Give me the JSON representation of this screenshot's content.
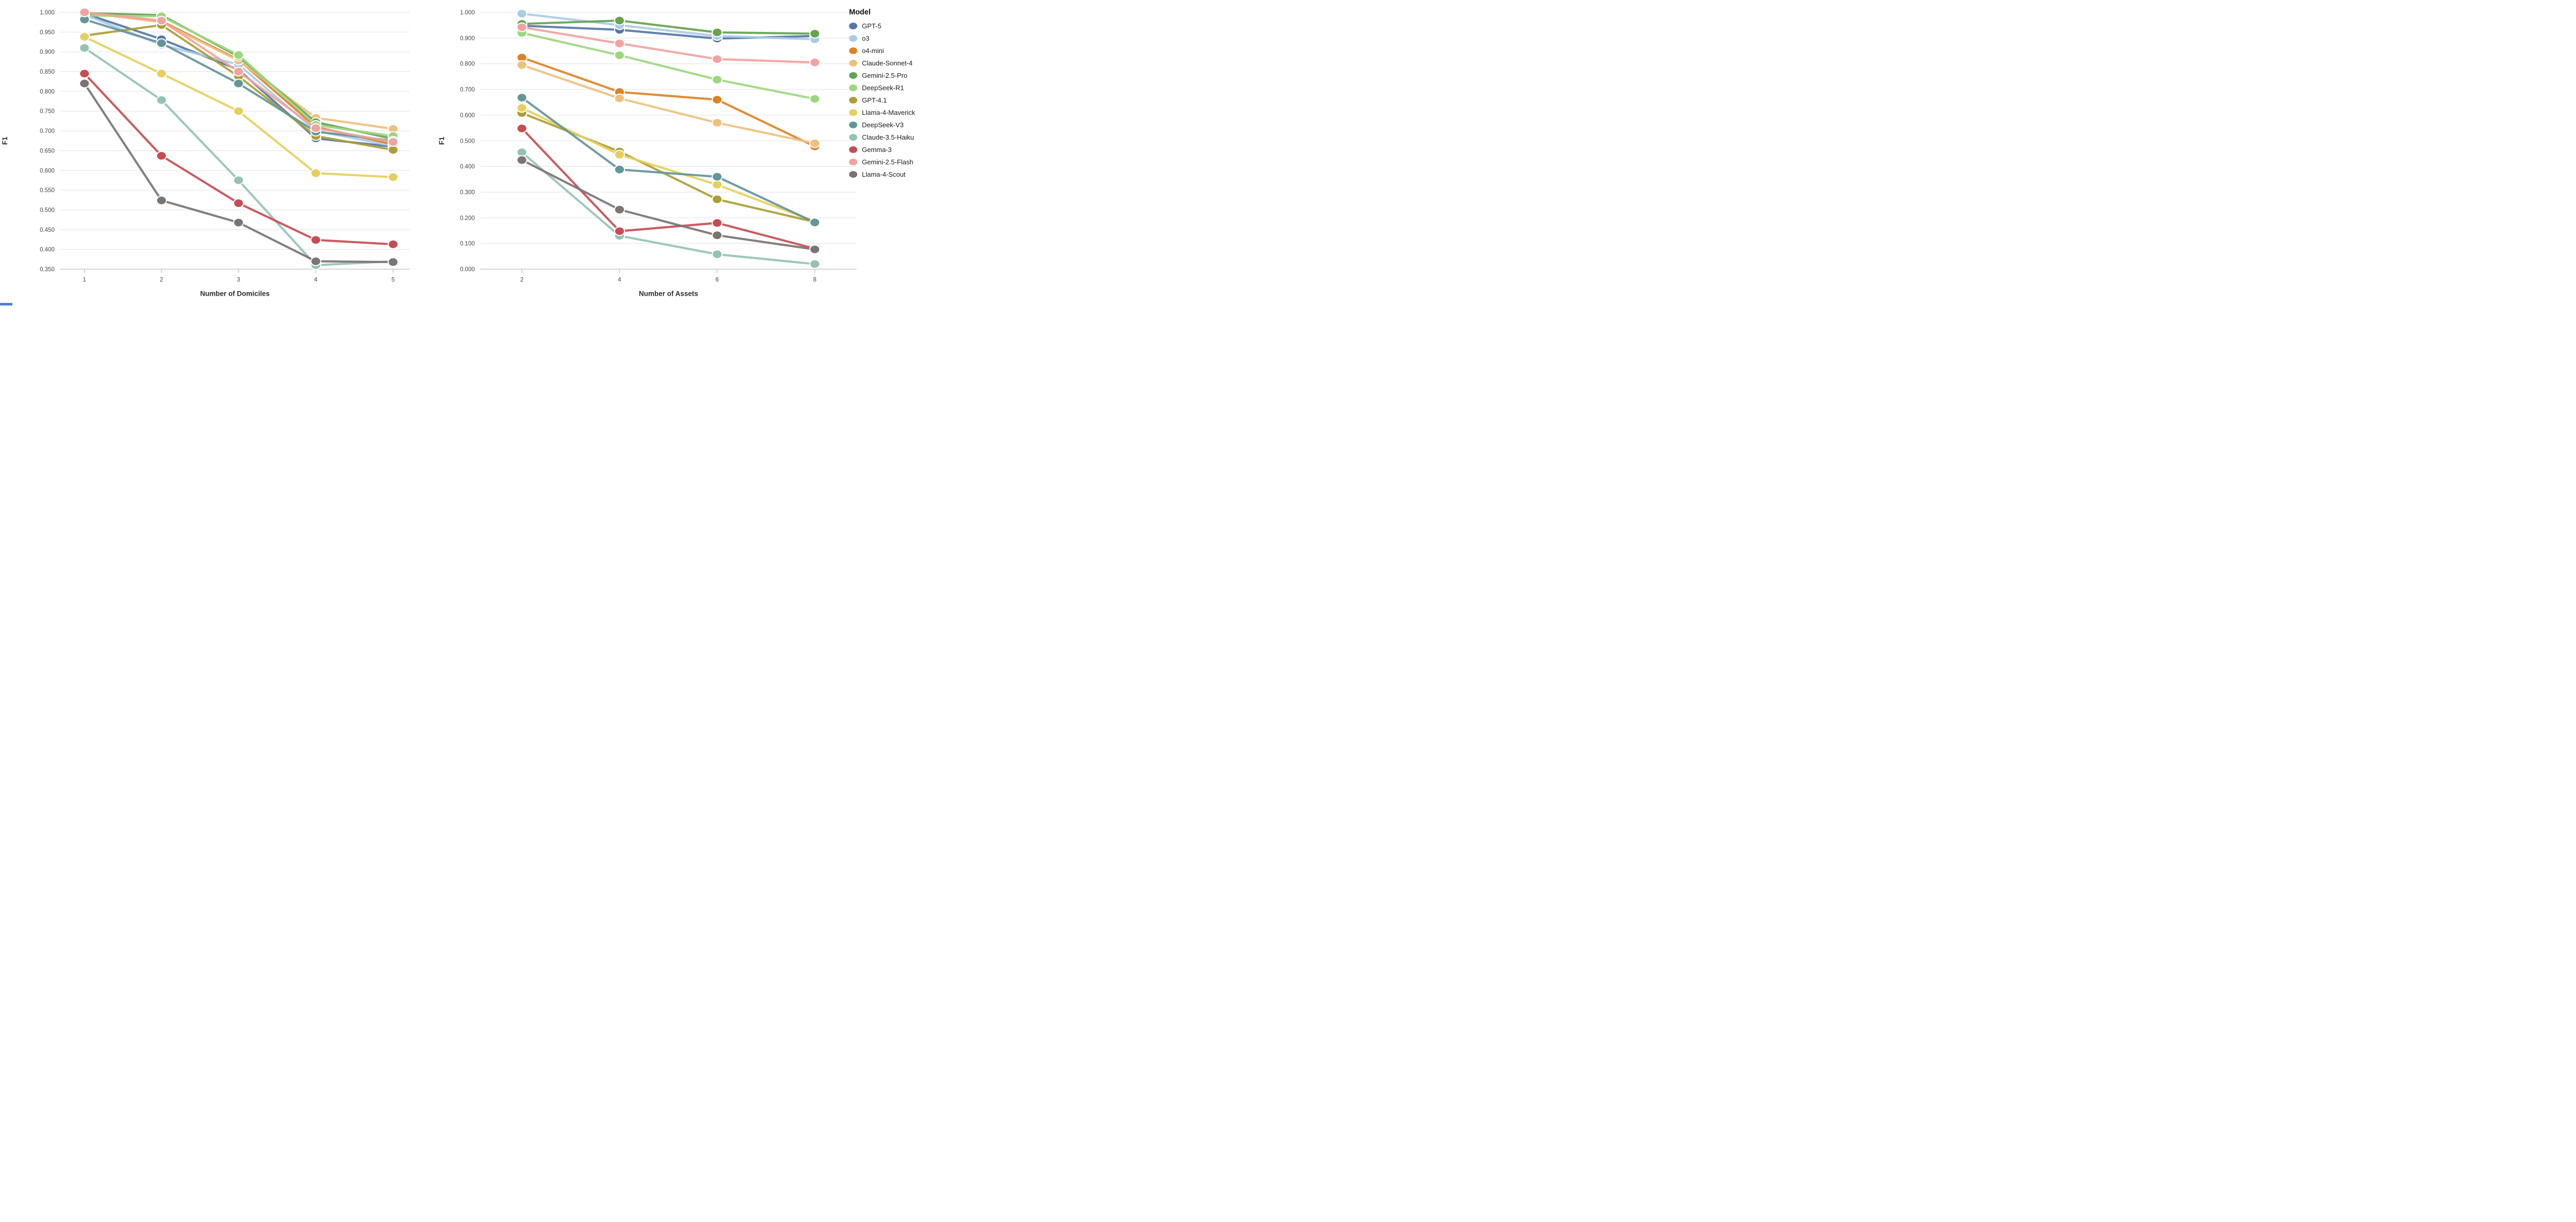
{
  "figure": {
    "background": "#ffffff",
    "tick_label_color": "#444444",
    "axis_title_color": "#2b2b2b",
    "grid_color": "#ececec",
    "axis_line_color": "#c9c9c9"
  },
  "legend": {
    "title": "Model",
    "items": [
      {
        "label": "GPT-5",
        "color": "#5377a8"
      },
      {
        "label": "o3",
        "color": "#a9cbe8"
      },
      {
        "label": "o4-mini",
        "color": "#dc8327"
      },
      {
        "label": "Claude-Sonnet-4",
        "color": "#eec07e"
      },
      {
        "label": "Gemini-2.5-Pro",
        "color": "#65a351"
      },
      {
        "label": "DeepSeek-R1",
        "color": "#9cd77e"
      },
      {
        "label": "GPT-4.1",
        "color": "#ab9e35"
      },
      {
        "label": "Llama-4-Maverick",
        "color": "#e6cf5c"
      },
      {
        "label": "DeepSeek-V3",
        "color": "#649599"
      },
      {
        "label": "Claude-3.5-Haiku",
        "color": "#95c2b6"
      },
      {
        "label": "Gemma-3",
        "color": "#c64d52"
      },
      {
        "label": "Gemini-2.5-Flash",
        "color": "#f0a3a0"
      },
      {
        "label": "Llama-4-Scout",
        "color": "#7b7472"
      }
    ]
  },
  "chart_data": [
    {
      "type": "line",
      "title": "",
      "xlabel": "Number of Domiciles",
      "ylabel": "F1",
      "x": [
        1,
        2,
        3,
        4,
        5
      ],
      "ylim": [
        0.35,
        1.0
      ],
      "ytick_step": 0.05,
      "ytick_decimals": 3,
      "grid": "horizontal",
      "series": [
        {
          "name": "GPT-5",
          "color": "#5377a8",
          "values": [
            0.997,
            0.932,
            0.855,
            0.681,
            0.66
          ]
        },
        {
          "name": "o3",
          "color": "#a9cbe8",
          "values": [
            0.994,
            0.918,
            0.868,
            0.7,
            0.662
          ]
        },
        {
          "name": "o4-mini",
          "color": "#dc8327",
          "values": [
            0.998,
            0.978,
            0.88,
            0.71,
            0.666
          ]
        },
        {
          "name": "Claude-Sonnet-4",
          "color": "#eec07e",
          "values": [
            1.0,
            0.975,
            0.878,
            0.733,
            0.705
          ]
        },
        {
          "name": "Gemini-2.5-Pro",
          "color": "#65a351",
          "values": [
            0.998,
            0.993,
            0.888,
            0.722,
            0.68
          ]
        },
        {
          "name": "DeepSeek-R1",
          "color": "#9cd77e",
          "values": [
            0.992,
            0.99,
            0.892,
            0.715,
            0.687
          ]
        },
        {
          "name": "GPT-4.1",
          "color": "#ab9e35",
          "values": [
            0.941,
            0.968,
            0.838,
            0.687,
            0.652
          ]
        },
        {
          "name": "Llama-4-Maverick",
          "color": "#e6cf5c",
          "values": [
            0.938,
            0.845,
            0.75,
            0.593,
            0.583
          ]
        },
        {
          "name": "DeepSeek-V3",
          "color": "#649599",
          "values": [
            0.982,
            0.922,
            0.82,
            0.698,
            0.675
          ]
        },
        {
          "name": "Claude-3.5-Haiku",
          "color": "#95c2b6",
          "values": [
            0.91,
            0.778,
            0.575,
            0.36,
            0.37
          ]
        },
        {
          "name": "Gemma-3",
          "color": "#c64d52",
          "values": [
            0.845,
            0.637,
            0.517,
            0.424,
            0.413
          ]
        },
        {
          "name": "Gemini-2.5-Flash",
          "color": "#f0a3a0",
          "values": [
            1.0,
            0.979,
            0.85,
            0.707,
            0.672
          ]
        },
        {
          "name": "Llama-4-Scout",
          "color": "#7b7472",
          "values": [
            0.82,
            0.524,
            0.468,
            0.37,
            0.368
          ]
        }
      ]
    },
    {
      "type": "line",
      "title": "",
      "xlabel": "Number of Assets",
      "ylabel": "F1",
      "x": [
        2,
        4,
        6,
        8
      ],
      "ylim": [
        0.0,
        1.0
      ],
      "ytick_step": 0.1,
      "ytick_decimals": 3,
      "grid": "horizontal",
      "series": [
        {
          "name": "GPT-5",
          "color": "#5377a8",
          "values": [
            0.948,
            0.932,
            0.898,
            0.908
          ]
        },
        {
          "name": "o3",
          "color": "#a9cbe8",
          "values": [
            0.995,
            0.95,
            0.908,
            0.895
          ]
        },
        {
          "name": "o4-mini",
          "color": "#dc8327",
          "values": [
            0.824,
            0.69,
            0.66,
            0.478
          ]
        },
        {
          "name": "Claude-Sonnet-4",
          "color": "#eec07e",
          "values": [
            0.795,
            0.665,
            0.57,
            0.49
          ]
        },
        {
          "name": "Gemini-2.5-Pro",
          "color": "#65a351",
          "values": [
            0.955,
            0.968,
            0.922,
            0.917
          ]
        },
        {
          "name": "DeepSeek-R1",
          "color": "#9cd77e",
          "values": [
            0.92,
            0.833,
            0.738,
            0.663
          ]
        },
        {
          "name": "GPT-4.1",
          "color": "#ab9e35",
          "values": [
            0.608,
            0.458,
            0.272,
            0.184
          ]
        },
        {
          "name": "Llama-4-Maverick",
          "color": "#e6cf5c",
          "values": [
            0.628,
            0.446,
            0.329,
            0.186
          ]
        },
        {
          "name": "DeepSeek-V3",
          "color": "#649599",
          "values": [
            0.668,
            0.388,
            0.36,
            0.182
          ]
        },
        {
          "name": "Claude-3.5-Haiku",
          "color": "#95c2b6",
          "values": [
            0.455,
            0.13,
            0.058,
            0.02
          ]
        },
        {
          "name": "Gemma-3",
          "color": "#c64d52",
          "values": [
            0.548,
            0.148,
            0.18,
            0.08
          ]
        },
        {
          "name": "Gemini-2.5-Flash",
          "color": "#f0a3a0",
          "values": [
            0.942,
            0.879,
            0.818,
            0.805
          ]
        },
        {
          "name": "Llama-4-Scout",
          "color": "#7b7472",
          "values": [
            0.425,
            0.232,
            0.132,
            0.077
          ]
        }
      ]
    }
  ]
}
